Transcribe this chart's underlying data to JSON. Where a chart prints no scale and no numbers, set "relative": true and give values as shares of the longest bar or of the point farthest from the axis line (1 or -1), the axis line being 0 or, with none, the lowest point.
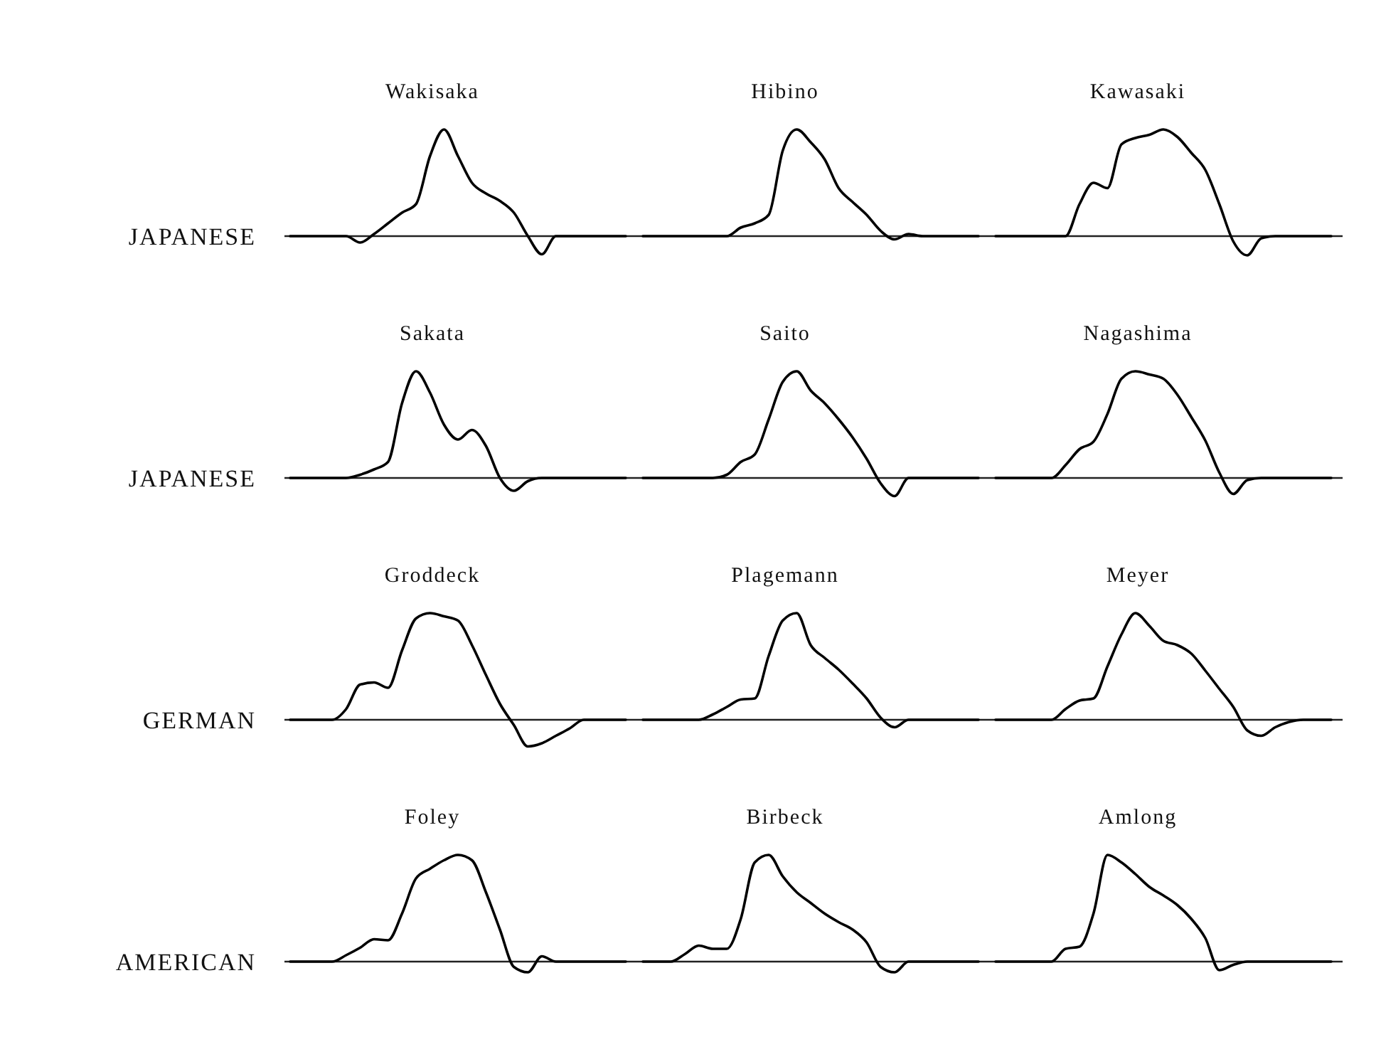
{
  "chart_data": [
    {
      "type": "line",
      "title": "Wakisaka",
      "ylabel": "JAPANESE",
      "relative": true,
      "color": "#000000",
      "categories": [
        null,
        null,
        null,
        null,
        null,
        null,
        null,
        null,
        null,
        null,
        null,
        null,
        null,
        null,
        null,
        null,
        null,
        null,
        null,
        null,
        null,
        null,
        null,
        null,
        null
      ],
      "values": [
        0,
        0,
        0,
        0,
        0,
        -0.06,
        0.02,
        0.12,
        0.22,
        0.3,
        0.75,
        1,
        0.75,
        0.5,
        0.4,
        0.33,
        0.22,
        0,
        -0.17,
        0,
        0,
        0,
        0,
        0,
        0
      ]
    },
    {
      "type": "line",
      "title": "Hibino",
      "relative": true,
      "color": "#000000",
      "categories": [
        null,
        null,
        null,
        null,
        null,
        null,
        null,
        null,
        null,
        null,
        null,
        null,
        null,
        null,
        null,
        null,
        null,
        null,
        null,
        null,
        null,
        null,
        null,
        null,
        null
      ],
      "values": [
        0,
        0,
        0,
        0,
        0,
        0,
        0,
        0.08,
        0.12,
        0.2,
        0.8,
        1,
        0.88,
        0.72,
        0.45,
        0.32,
        0.2,
        0.05,
        -0.03,
        0.02,
        0,
        0,
        0,
        0,
        0
      ]
    },
    {
      "type": "line",
      "title": "Kawasaki",
      "relative": true,
      "color": "#000000",
      "categories": [
        null,
        null,
        null,
        null,
        null,
        null,
        null,
        null,
        null,
        null,
        null,
        null,
        null,
        null,
        null,
        null,
        null,
        null,
        null,
        null,
        null,
        null,
        null,
        null,
        null
      ],
      "values": [
        0,
        0,
        0,
        0,
        0,
        0,
        0.3,
        0.5,
        0.45,
        0.86,
        0.92,
        0.95,
        1,
        0.93,
        0.78,
        0.62,
        0.3,
        -0.05,
        -0.18,
        -0.02,
        0,
        0,
        0,
        0,
        0
      ]
    },
    {
      "type": "line",
      "title": "Sakata",
      "ylabel": "JAPANESE",
      "relative": true,
      "color": "#000000",
      "categories": [
        null,
        null,
        null,
        null,
        null,
        null,
        null,
        null,
        null,
        null,
        null,
        null,
        null,
        null,
        null,
        null,
        null,
        null,
        null,
        null,
        null,
        null,
        null,
        null,
        null
      ],
      "values": [
        0,
        0,
        0,
        0,
        0,
        0.03,
        0.08,
        0.15,
        0.7,
        1,
        0.8,
        0.5,
        0.36,
        0.45,
        0.3,
        0,
        -0.12,
        -0.03,
        0,
        0,
        0,
        0,
        0,
        0,
        0
      ]
    },
    {
      "type": "line",
      "title": "Saito",
      "relative": true,
      "color": "#000000",
      "categories": [
        null,
        null,
        null,
        null,
        null,
        null,
        null,
        null,
        null,
        null,
        null,
        null,
        null,
        null,
        null,
        null,
        null,
        null,
        null,
        null,
        null,
        null,
        null,
        null,
        null
      ],
      "values": [
        0,
        0,
        0,
        0,
        0,
        0,
        0.03,
        0.15,
        0.22,
        0.55,
        0.9,
        1,
        0.82,
        0.7,
        0.55,
        0.38,
        0.18,
        -0.05,
        -0.17,
        0,
        0,
        0,
        0,
        0,
        0
      ]
    },
    {
      "type": "line",
      "title": "Nagashima",
      "relative": true,
      "color": "#000000",
      "categories": [
        null,
        null,
        null,
        null,
        null,
        null,
        null,
        null,
        null,
        null,
        null,
        null,
        null,
        null,
        null,
        null,
        null,
        null,
        null,
        null,
        null,
        null,
        null,
        null,
        null
      ],
      "values": [
        0,
        0,
        0,
        0,
        0,
        0.12,
        0.27,
        0.34,
        0.6,
        0.93,
        1,
        0.97,
        0.93,
        0.78,
        0.57,
        0.35,
        0.05,
        -0.15,
        -0.02,
        0,
        0,
        0,
        0,
        0,
        0
      ]
    },
    {
      "type": "line",
      "title": "Groddeck",
      "ylabel": "GERMAN",
      "relative": true,
      "color": "#000000",
      "categories": [
        null,
        null,
        null,
        null,
        null,
        null,
        null,
        null,
        null,
        null,
        null,
        null,
        null,
        null,
        null,
        null,
        null,
        null,
        null,
        null,
        null,
        null,
        null,
        null,
        null
      ],
      "values": [
        0,
        0,
        0,
        0,
        0.1,
        0.33,
        0.35,
        0.3,
        0.65,
        0.95,
        1,
        0.97,
        0.93,
        0.7,
        0.42,
        0.15,
        -0.05,
        -0.25,
        -0.22,
        -0.15,
        -0.08,
        0,
        0,
        0,
        0
      ]
    },
    {
      "type": "line",
      "title": "Plagemann",
      "relative": true,
      "color": "#000000",
      "categories": [
        null,
        null,
        null,
        null,
        null,
        null,
        null,
        null,
        null,
        null,
        null,
        null,
        null,
        null,
        null,
        null,
        null,
        null,
        null,
        null,
        null,
        null,
        null,
        null,
        null
      ],
      "values": [
        0,
        0,
        0,
        0,
        0,
        0.05,
        0.12,
        0.19,
        0.2,
        0.6,
        0.93,
        1,
        0.7,
        0.58,
        0.47,
        0.34,
        0.2,
        0.02,
        -0.07,
        0,
        0,
        0,
        0,
        0,
        0
      ]
    },
    {
      "type": "line",
      "title": "Meyer",
      "relative": true,
      "color": "#000000",
      "categories": [
        null,
        null,
        null,
        null,
        null,
        null,
        null,
        null,
        null,
        null,
        null,
        null,
        null,
        null,
        null,
        null,
        null,
        null,
        null,
        null,
        null,
        null,
        null,
        null,
        null
      ],
      "values": [
        0,
        0,
        0,
        0,
        0,
        0.1,
        0.18,
        0.2,
        0.5,
        0.8,
        1,
        0.88,
        0.74,
        0.7,
        0.62,
        0.46,
        0.29,
        0.12,
        -0.1,
        -0.15,
        -0.07,
        -0.02,
        0,
        0,
        0
      ]
    },
    {
      "type": "line",
      "title": "Foley",
      "ylabel": "AMERICAN",
      "relative": true,
      "color": "#000000",
      "categories": [
        null,
        null,
        null,
        null,
        null,
        null,
        null,
        null,
        null,
        null,
        null,
        null,
        null,
        null,
        null,
        null,
        null,
        null,
        null,
        null,
        null,
        null,
        null,
        null,
        null
      ],
      "values": [
        0,
        0,
        0,
        0,
        0.06,
        0.13,
        0.21,
        0.2,
        0.45,
        0.78,
        0.87,
        0.95,
        1,
        0.95,
        0.65,
        0.3,
        -0.05,
        -0.1,
        0.05,
        0,
        0,
        0,
        0,
        0,
        0
      ]
    },
    {
      "type": "line",
      "title": "Birbeck",
      "relative": true,
      "color": "#000000",
      "categories": [
        null,
        null,
        null,
        null,
        null,
        null,
        null,
        null,
        null,
        null,
        null,
        null,
        null,
        null,
        null,
        null,
        null,
        null,
        null,
        null,
        null,
        null,
        null,
        null,
        null
      ],
      "values": [
        0,
        0,
        0,
        0.07,
        0.15,
        0.12,
        0.12,
        0.4,
        0.93,
        1,
        0.8,
        0.65,
        0.55,
        0.45,
        0.37,
        0.3,
        0.18,
        -0.05,
        -0.1,
        0,
        0,
        0,
        0,
        0,
        0
      ]
    },
    {
      "type": "line",
      "title": "Amlong",
      "relative": true,
      "color": "#000000",
      "categories": [
        null,
        null,
        null,
        null,
        null,
        null,
        null,
        null,
        null,
        null,
        null,
        null,
        null,
        null,
        null,
        null,
        null,
        null,
        null,
        null,
        null,
        null,
        null,
        null,
        null
      ],
      "values": [
        0,
        0,
        0,
        0,
        0,
        0.12,
        0.14,
        0.45,
        1,
        0.93,
        0.82,
        0.7,
        0.62,
        0.53,
        0.4,
        0.22,
        -0.08,
        -0.03,
        0,
        0,
        0,
        0,
        0,
        0,
        0
      ]
    }
  ]
}
